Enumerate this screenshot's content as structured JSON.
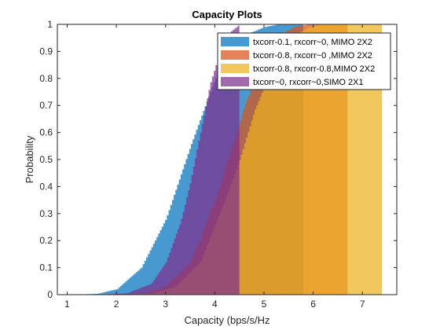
{
  "chart_data": {
    "type": "area",
    "title": "Capacity Plots",
    "xlabel": "Capacity (bps/s/Hz",
    "ylabel": "Probability",
    "xlim": [
      0.8,
      7.7
    ],
    "ylim": [
      0,
      1
    ],
    "xticks": [
      "1",
      "2",
      "3",
      "4",
      "5",
      "6",
      "7"
    ],
    "yticks": [
      "0",
      "0.1",
      "0.2",
      "0.3",
      "0.4",
      "0.5",
      "0.6",
      "0.7",
      "0.8",
      "0.9",
      "1"
    ],
    "grid": false,
    "legend_position": "top-right",
    "series": [
      {
        "name": "txcorr-0.1, rxcorr~0, MIMO 2X2",
        "color": "#0072BD",
        "opacity": 0.72,
        "points": [
          [
            1.1,
            0
          ],
          [
            1.6,
            0.003
          ],
          [
            2.0,
            0.02
          ],
          [
            2.5,
            0.1
          ],
          [
            3.0,
            0.28
          ],
          [
            3.5,
            0.55
          ],
          [
            3.8,
            0.7
          ],
          [
            4.0,
            0.8
          ],
          [
            4.3,
            0.9
          ],
          [
            4.6,
            0.96
          ],
          [
            5.0,
            0.99
          ],
          [
            5.3,
            1.0
          ],
          [
            5.8,
            1.0
          ]
        ]
      },
      {
        "name": "txcorr-0.8, rxcorr~0 ,MIMO 2X2",
        "color": "#D95319",
        "opacity": 0.72,
        "points": [
          [
            1.5,
            0
          ],
          [
            2.5,
            0.002
          ],
          [
            3.0,
            0.03
          ],
          [
            3.5,
            0.12
          ],
          [
            4.0,
            0.35
          ],
          [
            4.3,
            0.52
          ],
          [
            4.6,
            0.7
          ],
          [
            5.0,
            0.88
          ],
          [
            5.3,
            0.96
          ],
          [
            5.6,
            0.99
          ],
          [
            5.9,
            1.0
          ],
          [
            6.7,
            1.0
          ]
        ]
      },
      {
        "name": "txcorr-0.8, rxcorr-0.8,MIMO 2X2",
        "color": "#EDB120",
        "opacity": 0.72,
        "points": [
          [
            1.8,
            0
          ],
          [
            2.7,
            0.003
          ],
          [
            3.2,
            0.03
          ],
          [
            3.7,
            0.12
          ],
          [
            4.2,
            0.35
          ],
          [
            4.5,
            0.5
          ],
          [
            4.8,
            0.68
          ],
          [
            5.2,
            0.86
          ],
          [
            5.6,
            0.96
          ],
          [
            6.0,
            0.995
          ],
          [
            6.2,
            1.0
          ],
          [
            7.4,
            1.0
          ]
        ]
      },
      {
        "name": "txcorr~0, rxcorr~0,SIMO 2X1",
        "color": "#7E2F8E",
        "opacity": 0.72,
        "points": [
          [
            1.6,
            0
          ],
          [
            2.2,
            0.005
          ],
          [
            2.7,
            0.04
          ],
          [
            3.0,
            0.12
          ],
          [
            3.3,
            0.27
          ],
          [
            3.5,
            0.42
          ],
          [
            3.7,
            0.6
          ],
          [
            3.9,
            0.78
          ],
          [
            4.1,
            0.9
          ],
          [
            4.3,
            0.97
          ],
          [
            4.5,
            1.0
          ]
        ]
      }
    ]
  }
}
